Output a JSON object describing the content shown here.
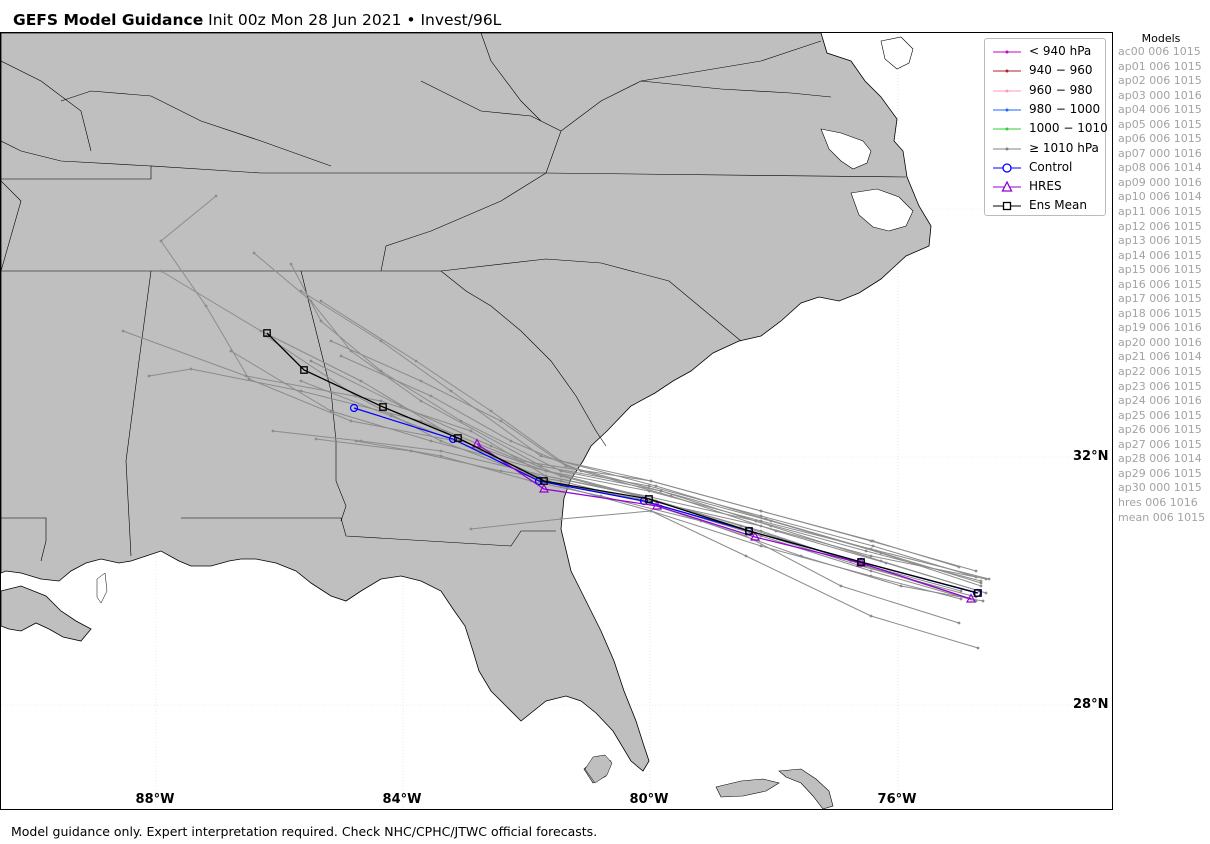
{
  "title": {
    "bold": "GEFS Model Guidance",
    "rest": " Init 00z Mon 28 Jun 2021 • Invest/96L"
  },
  "colors": {
    "land": "#bfbfbf",
    "ocean": "#ffffff",
    "border": "#000000",
    "grid": "#dddddd",
    "member_track": "#8c8c8c",
    "control": "#0000ff",
    "hres": "#9400d3",
    "ens_mean": "#000000",
    "model_list_text": "#a3a3a3"
  },
  "lat_labels": [
    "32°N",
    "28°N"
  ],
  "lon_labels": [
    "88°W",
    "84°W",
    "80°W",
    "76°W"
  ],
  "legend": [
    {
      "label": "< 940 hPa",
      "color": "#c800c8",
      "marker": "dot"
    },
    {
      "label": "940 − 960",
      "color": "#b22222",
      "marker": "dot"
    },
    {
      "label": "960 − 980",
      "color": "#ff99bb",
      "marker": "dot"
    },
    {
      "label": "980 − 1000",
      "color": "#1e64ff",
      "marker": "dot"
    },
    {
      "label": "1000 − 1010",
      "color": "#32cd32",
      "marker": "dot"
    },
    {
      "label": "≥ 1010 hPa",
      "color": "#808080",
      "marker": "dot"
    },
    {
      "label": "Control",
      "color": "#0000ff",
      "marker": "circle"
    },
    {
      "label": "HRES",
      "color": "#9400d3",
      "marker": "triangle"
    },
    {
      "label": "Ens Mean",
      "color": "#000000",
      "marker": "square"
    }
  ],
  "models": {
    "header": "Models",
    "items": [
      "ac00 006 1015",
      "ap01 006 1015",
      "ap02 006 1015",
      "ap03 000 1016",
      "ap04 006 1015",
      "ap05 006 1015",
      "ap06 006 1015",
      "ap07 000 1016",
      "ap08 006 1014",
      "ap09 000 1016",
      "ap10 006 1014",
      "ap11 006 1015",
      "ap12 006 1015",
      "ap13 006 1015",
      "ap14 006 1015",
      "ap15 006 1015",
      "ap16 006 1015",
      "ap17 006 1015",
      "ap18 006 1015",
      "ap19 006 1016",
      "ap20 000 1016",
      "ap21 006 1014",
      "ap22 006 1015",
      "ap23 006 1015",
      "ap24 006 1016",
      "ap25 006 1015",
      "ap26 006 1015",
      "ap27 006 1015",
      "ap28 006 1014",
      "ap29 006 1015",
      "ap30 000 1015",
      "hres 006 1016",
      "mean 006 1015"
    ]
  },
  "footer": "Model guidance only. Expert interpretation required. Check NHC/CPHC/JTWC official forecasts."
}
